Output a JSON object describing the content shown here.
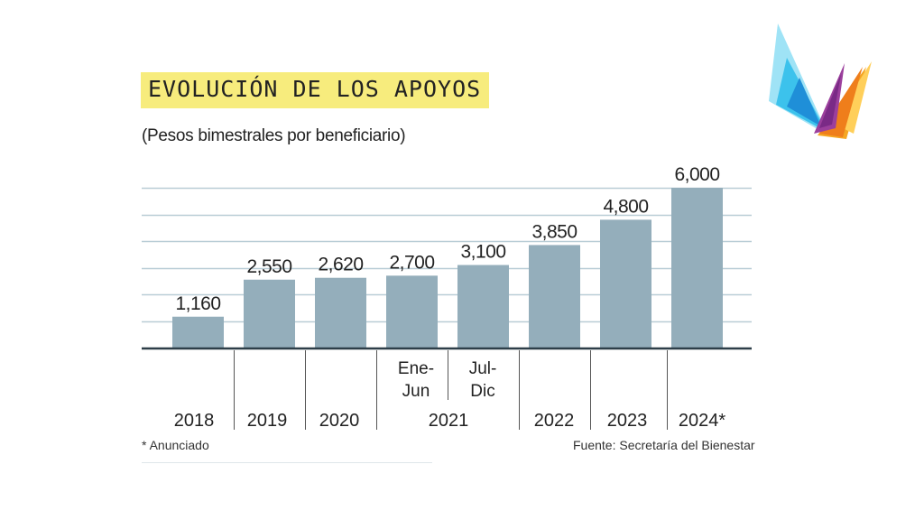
{
  "chart_data": {
    "type": "bar",
    "title": "EVOLUCIÓN DE LOS APOYOS",
    "subtitle": "(Pesos bimestrales por beneficiario)",
    "categories": [
      "2018",
      "2019",
      "2020",
      "2021 Ene-Jun",
      "2021 Jul-Dic",
      "2022",
      "2023",
      "2024*"
    ],
    "values": [
      1160,
      2550,
      2620,
      2700,
      3100,
      3850,
      4800,
      6000
    ],
    "value_labels": [
      "1,160",
      "2,550",
      "2,620",
      "2,700",
      "3,100",
      "3,850",
      "4,800",
      "6,000"
    ],
    "sub_labels": [
      {
        "line1": "Ene-",
        "line2": "Jun"
      },
      {
        "line1": "Jul-",
        "line2": "Dic"
      }
    ],
    "group_labels": [
      "2018",
      "2019",
      "2020",
      "2021",
      "2022",
      "2023",
      "2024*"
    ],
    "ylim": [
      0,
      6000
    ],
    "grid": true,
    "bar_color": "#94aebb",
    "footnote": "* Anunciado",
    "source": "Fuente: Secretaría del Bienestar"
  }
}
